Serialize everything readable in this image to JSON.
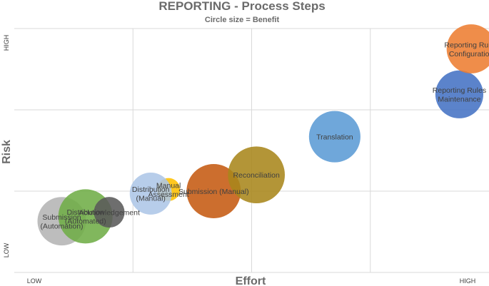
{
  "chart_data": {
    "type": "bubble",
    "title": "REPORTING - Process Steps",
    "subtitle": "Circle size = Benefit",
    "xlabel": "Effort",
    "ylabel": "Risk",
    "x_ticks": {
      "low": "LOW",
      "high": "HIGH"
    },
    "y_ticks": {
      "low": "LOW",
      "high": "HIGH"
    },
    "xlim": [
      0,
      4
    ],
    "ylim": [
      0,
      3
    ],
    "grid": true,
    "points": [
      {
        "name": "Submission (Automation)",
        "label_lines": [
          "Submission",
          "(Automation)"
        ],
        "x": 0.4,
        "y": 0.63,
        "size": 0.8,
        "color": "#b4b4b4"
      },
      {
        "name": "Distribution (Automated)",
        "label_lines": [
          "Distribution",
          "(Automated)"
        ],
        "x": 0.6,
        "y": 0.69,
        "size": 1.0,
        "color": "#70ad47"
      },
      {
        "name": "Acknowledgement",
        "label_lines": [
          "Acknowledgement"
        ],
        "x": 0.8,
        "y": 0.74,
        "size": 0.32,
        "color": "#5a5a5a"
      },
      {
        "name": "Manual Assessment",
        "label_lines": [
          "Manual",
          "Assessment"
        ],
        "x": 1.3,
        "y": 1.02,
        "size": 0.18,
        "color": "#ffc000"
      },
      {
        "name": "Distribution (Manual)",
        "label_lines": [
          "Distribution",
          "(Manual)"
        ],
        "x": 1.15,
        "y": 0.97,
        "size": 0.6,
        "color": "#adc6e7"
      },
      {
        "name": "Submission (Manual)",
        "label_lines": [
          "Submission (Manual)"
        ],
        "x": 1.68,
        "y": 1.0,
        "size": 1.0,
        "color": "#c55a11"
      },
      {
        "name": "Reconciliation",
        "label_lines": [
          "Reconciliation"
        ],
        "x": 2.04,
        "y": 1.2,
        "size": 1.1,
        "color": "#a9861b"
      },
      {
        "name": "Translation",
        "label_lines": [
          "Translation"
        ],
        "x": 2.7,
        "y": 1.67,
        "size": 0.9,
        "color": "#5b9bd5"
      },
      {
        "name": "Reporting Rules Maintenance",
        "label_lines": [
          "Reporting Rules",
          "Maintenance"
        ],
        "x": 3.75,
        "y": 2.19,
        "size": 0.78,
        "color": "#4472c4"
      },
      {
        "name": "Reporting Rules Configuration",
        "label_lines": [
          "Reporting Rules",
          "Configuration"
        ],
        "x": 3.85,
        "y": 2.75,
        "size": 0.82,
        "color": "#ed7d31"
      }
    ]
  }
}
